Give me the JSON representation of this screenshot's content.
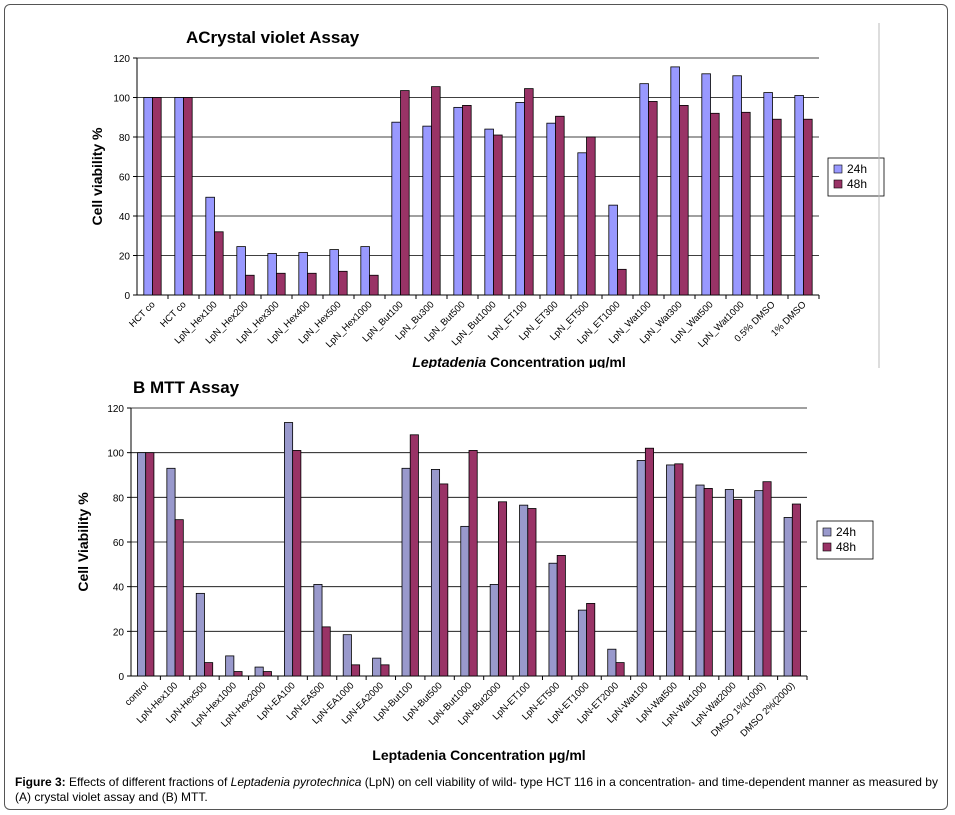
{
  "chart_data": [
    {
      "type": "bar",
      "title": "ACrystal violet Assay",
      "ylabel": "Cell viability %",
      "xlabel_italic": "Leptadenia",
      "xlabel_rest": " Concentration µg/ml",
      "ylim": [
        0,
        120
      ],
      "yticks": [
        "0",
        "20",
        "40",
        "60",
        "80",
        "100",
        "120"
      ],
      "grid": true,
      "legend": "right",
      "categories": [
        "HCT co",
        "HCT co",
        "LpN_Hex100",
        "LpN_Hex200",
        "LpN_Hex300",
        "LpN_Hex400",
        "LpN_Hex500",
        "LpN_Hex1000",
        "LpN_But100",
        "LpN_Bu300",
        "LpN_But500",
        "LpN_But1000",
        "LpN_ET100",
        "LpN_ET300",
        "LpN_ET500",
        "LpN_ET1000",
        "LpN_Wat100",
        "LpN_Wat300",
        "LpN_Wat500",
        "LpN_Wat1000",
        "0.5% DMSO",
        "1% DMSO"
      ],
      "series": [
        {
          "name": "24h",
          "color": "#9999ff",
          "values": [
            100,
            100,
            49.5,
            24.5,
            21,
            21.5,
            23,
            24.5,
            87.5,
            85.5,
            95,
            84,
            97.5,
            87,
            72,
            45.5,
            107,
            115.5,
            112,
            111,
            102.5,
            101
          ]
        },
        {
          "name": "48h",
          "color": "#993366",
          "values": [
            100,
            100,
            32,
            10,
            11,
            11,
            12,
            10,
            103.5,
            105.5,
            96,
            81,
            104.5,
            90.5,
            80,
            13,
            98,
            96,
            92,
            92.5,
            89,
            89
          ]
        }
      ]
    },
    {
      "type": "bar",
      "title": "B MTT Assay",
      "ylabel": "Cell Viability %",
      "xlabel": "Leptadenia Concentration µg/ml",
      "ylim": [
        0,
        120
      ],
      "yticks": [
        "0",
        "20",
        "40",
        "60",
        "80",
        "100",
        "120"
      ],
      "grid": true,
      "legend": "right",
      "categories": [
        "control",
        "LpN-Hex100",
        "LpN-Hex500",
        "LpN-Hex1000",
        "LpN-Hex2000",
        "LpN-EA100",
        "LpN-EA500",
        "LpN-EA1000",
        "LpN-EA2000",
        "LpN-But100",
        "LpN-But500",
        "LpN-But1000",
        "LpN-But2000",
        "LpN-ET100",
        "LpN-ET500",
        "LpN-ET1000",
        "LpN-ET2000",
        "LpN-Wat100",
        "LpN-Wat500",
        "LpN-Wat1000",
        "LpN-Wat2000",
        "DMSO 1%(1000)",
        "DMSO 2%(2000)"
      ],
      "series": [
        {
          "name": "24h",
          "color": "#9999cc",
          "values": [
            100,
            93,
            37,
            9,
            4,
            113.5,
            41,
            18.5,
            8,
            93,
            92.5,
            67,
            41,
            76.5,
            50.5,
            29.5,
            12,
            96.5,
            94.5,
            85.5,
            83.5,
            83,
            71
          ]
        },
        {
          "name": "48h",
          "color": "#993366",
          "values": [
            100,
            70,
            6,
            2,
            2,
            101,
            22,
            5,
            5,
            108,
            86,
            101,
            78,
            75,
            54,
            32.5,
            6,
            102,
            95,
            84,
            79,
            87,
            77
          ]
        }
      ]
    }
  ],
  "caption": {
    "label": "Figure 3:",
    "text_before": " Effects of different fractions of ",
    "italic": "Leptadenia pyrotechnica",
    "text_after": " (LpN) on cell viability of wild- type HCT 116 in a concentration- and time-dependent manner as measured by (A) crystal violet assay and (B) MTT."
  }
}
